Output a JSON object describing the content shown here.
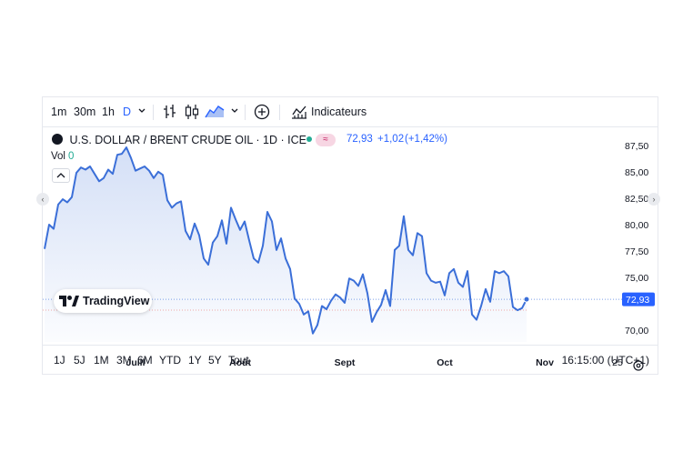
{
  "toolbar": {
    "intervals": [
      "1m",
      "30m",
      "1h",
      "D"
    ],
    "active_interval": "D",
    "indicators_label": "Indicateurs"
  },
  "legend": {
    "symbol": "U.S. DOLLAR / BRENT CRUDE OIL · 1D · ICE",
    "price": "72,93",
    "change": "+1,02",
    "change_pct": "(+1,42%)",
    "vol_label": "Vol",
    "vol_value": "0",
    "badge_symbol": "≈"
  },
  "brand": {
    "name": "TradingView"
  },
  "bottom": {
    "ranges": [
      "1J",
      "5J",
      "1M",
      "3M",
      "6M",
      "YTD",
      "1Y",
      "5Y",
      "Tout"
    ],
    "time": "16:15:00 (UTC+1)"
  },
  "colors": {
    "line": "#3b6fd8",
    "accent": "#2962ff",
    "green_dot": "#22ab94",
    "price_tag": "#2962ff"
  },
  "chart_data": {
    "type": "area",
    "title": "U.S. DOLLAR / BRENT CRUDE OIL · 1D · ICE",
    "xlabel": "",
    "ylabel": "",
    "ylim": [
      68.9,
      89.2
    ],
    "x_ticks": [
      {
        "label": "Juill",
        "index": 20
      },
      {
        "label": "Août",
        "index": 43
      },
      {
        "label": "Sept",
        "index": 66
      },
      {
        "label": "Oct",
        "index": 88
      },
      {
        "label": "Nov",
        "index": 110
      },
      {
        "label": "25",
        "index": 126
      }
    ],
    "y_ticks": [
      {
        "label": "87,50",
        "value": 87.5
      },
      {
        "label": "85,00",
        "value": 85.0
      },
      {
        "label": "82,50",
        "value": 82.5
      },
      {
        "label": "80,00",
        "value": 80.0
      },
      {
        "label": "77,50",
        "value": 77.5
      },
      {
        "label": "75,00",
        "value": 75.0
      },
      {
        "label": "70,00",
        "value": 70.0
      }
    ],
    "last_value_label": "72,93",
    "last_value": 72.93,
    "prev_close": 71.91,
    "values": [
      77.7,
      80.0,
      79.6,
      81.9,
      82.4,
      82.1,
      82.6,
      84.9,
      85.4,
      85.2,
      85.5,
      84.8,
      84.1,
      84.4,
      85.2,
      84.8,
      86.6,
      86.7,
      87.3,
      86.3,
      85.1,
      85.3,
      85.5,
      85.1,
      84.4,
      85.0,
      84.7,
      82.3,
      81.6,
      82.0,
      82.2,
      79.4,
      78.6,
      80.1,
      79.0,
      76.8,
      76.2,
      78.3,
      78.9,
      80.4,
      78.2,
      81.6,
      80.5,
      79.5,
      80.3,
      78.5,
      76.8,
      76.4,
      78.0,
      81.2,
      80.3,
      77.6,
      78.7,
      76.8,
      75.8,
      73.0,
      72.5,
      71.5,
      71.8,
      69.7,
      70.5,
      72.3,
      72.0,
      72.8,
      73.4,
      73.1,
      72.6,
      74.9,
      74.7,
      74.2,
      75.3,
      73.5,
      70.8,
      71.7,
      72.4,
      73.8,
      72.3,
      77.6,
      78.0,
      80.8,
      77.6,
      77.1,
      79.2,
      78.9,
      75.4,
      74.7,
      74.5,
      74.6,
      73.3,
      75.4,
      75.8,
      74.5,
      74.1,
      75.6,
      71.5,
      71.0,
      72.3,
      73.9,
      72.7,
      75.6,
      75.4,
      75.6,
      75.1,
      72.2,
      71.9,
      72.1,
      72.93
    ]
  }
}
